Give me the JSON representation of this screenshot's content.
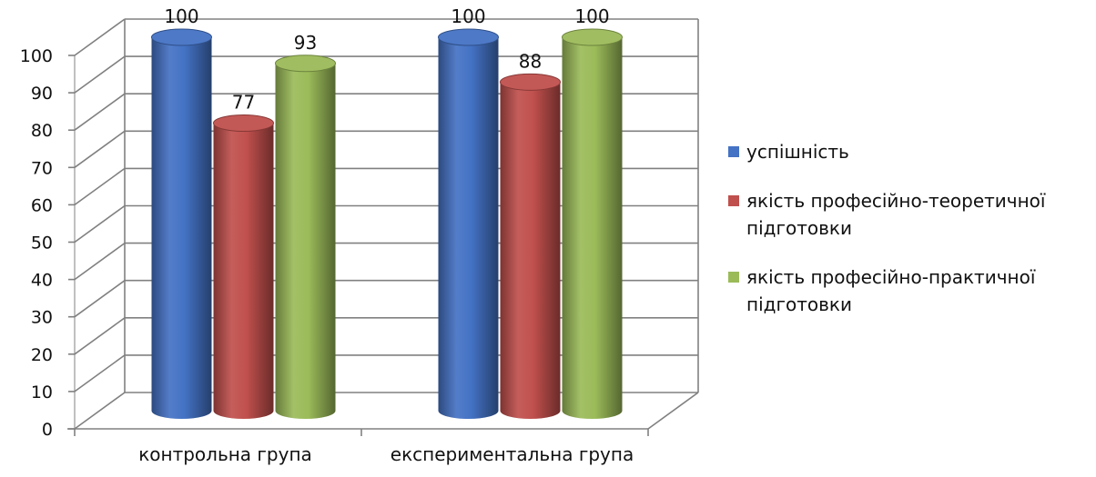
{
  "chart_data": {
    "type": "bar",
    "categories": [
      "контрольна група",
      "експериментальна група"
    ],
    "series": [
      {
        "name": "успішність",
        "values": [
          100,
          100
        ],
        "color": "#4472C4"
      },
      {
        "name": "якість професійно-теоретичної підготовки",
        "values": [
          77,
          88
        ],
        "color": "#C0504D"
      },
      {
        "name": "якість професійно-практичної підготовки",
        "values": [
          93,
          100
        ],
        "color": "#9BBB59"
      }
    ],
    "y_ticks": [
      "0",
      "10",
      "20",
      "30",
      "40",
      "50",
      "60",
      "70",
      "80",
      "90",
      "100"
    ],
    "ylim": [
      0,
      100
    ],
    "grid": true,
    "style": "3d-cylinder",
    "legend_position": "right",
    "title": "",
    "xlabel": "",
    "ylabel": ""
  }
}
